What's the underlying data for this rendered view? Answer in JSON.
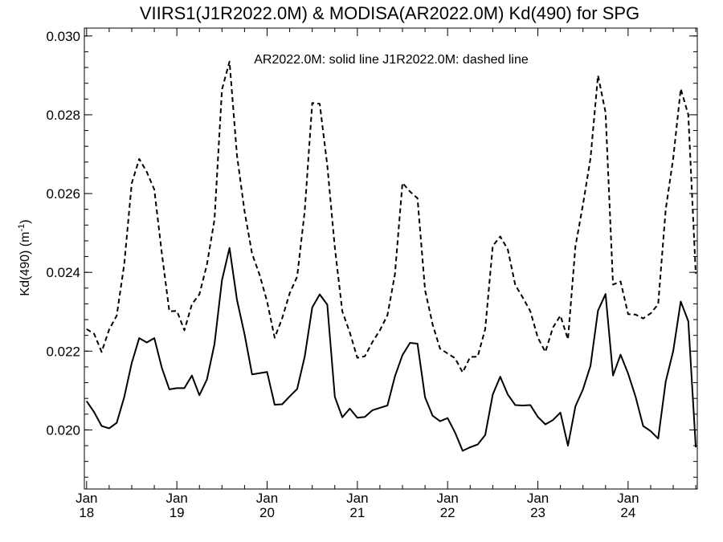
{
  "chart_data": {
    "type": "line",
    "title": "VIIRS1(J1R2022.0M) & MODISA(AR2022.0M)  Kd(490) for SPG",
    "annotation": "AR2022.0M: solid line   J1R2022.0M: dashed line",
    "ylabel": "Kd(490) (m",
    "ylabel_sup": "-1",
    "ylabel_close": ")",
    "ylim": [
      0.0185,
      0.0302
    ],
    "yticks": [
      "0.020",
      "0.022",
      "0.024",
      "0.026",
      "0.028",
      "0.030"
    ],
    "x_start": "2018-01",
    "x_end": "2024-10",
    "xticks": [
      {
        "date": "2018-01",
        "month": "Jan",
        "year": "18"
      },
      {
        "date": "2019-01",
        "month": "Jan",
        "year": "19"
      },
      {
        "date": "2020-01",
        "month": "Jan",
        "year": "20"
      },
      {
        "date": "2021-01",
        "month": "Jan",
        "year": "21"
      },
      {
        "date": "2022-01",
        "month": "Jan",
        "year": "22"
      },
      {
        "date": "2023-01",
        "month": "Jan",
        "year": "23"
      },
      {
        "date": "2024-01",
        "month": "Jan",
        "year": "24"
      }
    ],
    "x": [
      "2018-01",
      "2018-02",
      "2018-03",
      "2018-04",
      "2018-05",
      "2018-06",
      "2018-07",
      "2018-08",
      "2018-09",
      "2018-10",
      "2018-11",
      "2018-12",
      "2019-01",
      "2019-02",
      "2019-03",
      "2019-04",
      "2019-05",
      "2019-06",
      "2019-07",
      "2019-08",
      "2019-09",
      "2019-10",
      "2019-11",
      "2019-12",
      "2020-01",
      "2020-02",
      "2020-03",
      "2020-04",
      "2020-05",
      "2020-06",
      "2020-07",
      "2020-08",
      "2020-09",
      "2020-10",
      "2020-11",
      "2020-12",
      "2021-01",
      "2021-02",
      "2021-03",
      "2021-04",
      "2021-05",
      "2021-06",
      "2021-07",
      "2021-08",
      "2021-09",
      "2021-10",
      "2021-11",
      "2021-12",
      "2022-01",
      "2022-02",
      "2022-03",
      "2022-04",
      "2022-05",
      "2022-06",
      "2022-07",
      "2022-08",
      "2022-09",
      "2022-10",
      "2022-11",
      "2022-12",
      "2023-01",
      "2023-02",
      "2023-03",
      "2023-04",
      "2023-05",
      "2023-06",
      "2023-07",
      "2023-08",
      "2023-09",
      "2023-10",
      "2023-11",
      "2023-12",
      "2024-01",
      "2024-02",
      "2024-03",
      "2024-04",
      "2024-05",
      "2024-06",
      "2024-07",
      "2024-08",
      "2024-09",
      "2024-10"
    ],
    "series": [
      {
        "name": "AR2022.0M",
        "style": "solid",
        "color": "#000000",
        "values": [
          0.02073,
          0.02045,
          0.0201,
          0.02004,
          0.02018,
          0.02083,
          0.0217,
          0.02233,
          0.02222,
          0.02233,
          0.02158,
          0.02103,
          0.02106,
          0.02106,
          0.02138,
          0.02088,
          0.02128,
          0.02218,
          0.0238,
          0.02462,
          0.0233,
          0.02243,
          0.02141,
          0.02144,
          0.02147,
          0.02064,
          0.02065,
          0.02085,
          0.02104,
          0.02186,
          0.02311,
          0.02344,
          0.02318,
          0.02084,
          0.02032,
          0.02054,
          0.02031,
          0.02033,
          0.0205,
          0.02056,
          0.02062,
          0.02136,
          0.0219,
          0.02221,
          0.02219,
          0.02083,
          0.02036,
          0.02022,
          0.0203,
          0.01993,
          0.01947,
          0.01956,
          0.01963,
          0.01987,
          0.0209,
          0.02135,
          0.0209,
          0.02063,
          0.02062,
          0.02063,
          0.02033,
          0.02014,
          0.02025,
          0.02044,
          0.0196,
          0.0206,
          0.02103,
          0.02163,
          0.02303,
          0.02345,
          0.02138,
          0.02191,
          0.02143,
          0.02084,
          0.0201,
          0.01997,
          0.01978,
          0.02123,
          0.022,
          0.02326,
          0.02276,
          0.01956
        ]
      },
      {
        "name": "J1R2022.0M",
        "style": "dashed",
        "color": "#000000",
        "values": [
          0.02256,
          0.02244,
          0.02198,
          0.02255,
          0.0229,
          0.0242,
          0.02626,
          0.02688,
          0.02655,
          0.0261,
          0.02449,
          0.02301,
          0.02302,
          0.02253,
          0.02319,
          0.02344,
          0.0242,
          0.02534,
          0.02864,
          0.02935,
          0.02697,
          0.02555,
          0.02447,
          0.02394,
          0.02326,
          0.02234,
          0.02283,
          0.02347,
          0.02389,
          0.02555,
          0.0283,
          0.02828,
          0.02672,
          0.02463,
          0.02301,
          0.02247,
          0.02183,
          0.02187,
          0.02223,
          0.02253,
          0.02291,
          0.02395,
          0.02627,
          0.02605,
          0.02588,
          0.02355,
          0.02268,
          0.02206,
          0.02194,
          0.02182,
          0.02146,
          0.02185,
          0.02186,
          0.02256,
          0.02467,
          0.02491,
          0.02458,
          0.02368,
          0.02336,
          0.02301,
          0.02234,
          0.02198,
          0.0226,
          0.0229,
          0.0223,
          0.02466,
          0.02572,
          0.0269,
          0.029,
          0.02806,
          0.02369,
          0.02377,
          0.02294,
          0.02293,
          0.02283,
          0.02296,
          0.02319,
          0.0256,
          0.02689,
          0.02866,
          0.028,
          0.02396
        ]
      }
    ],
    "grid": false,
    "legend": "none"
  }
}
